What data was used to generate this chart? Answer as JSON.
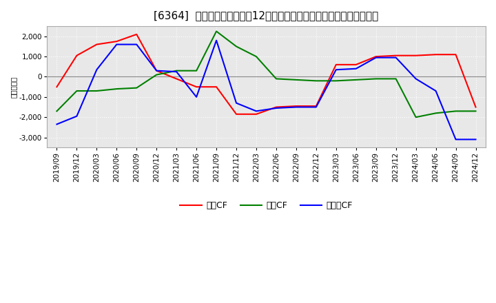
{
  "title": "[6364]  キャッシュフローの12か月移動合計の対前年同期増減額の推移",
  "ylabel": "（百万円）",
  "x_labels": [
    "2019/09",
    "2019/12",
    "2020/03",
    "2020/06",
    "2020/09",
    "2020/12",
    "2021/03",
    "2021/06",
    "2021/09",
    "2021/12",
    "2022/03",
    "2022/06",
    "2022/09",
    "2022/12",
    "2023/03",
    "2023/06",
    "2023/09",
    "2023/12",
    "2024/03",
    "2024/06",
    "2024/09",
    "2024/12"
  ],
  "series_order": [
    "営業CF",
    "投資CF",
    "フリーCF"
  ],
  "series": {
    "営業CF": {
      "color": "#ff0000",
      "values": [
        -500,
        1050,
        1600,
        1750,
        2100,
        300,
        -100,
        -500,
        -500,
        -1850,
        -1850,
        -1500,
        -1450,
        -1450,
        600,
        600,
        1000,
        1050,
        1050,
        1100,
        1100,
        -1500
      ]
    },
    "投資CF": {
      "color": "#008000",
      "values": [
        -1700,
        -700,
        -700,
        -600,
        -550,
        100,
        300,
        300,
        2250,
        1500,
        1000,
        -100,
        -150,
        -200,
        -200,
        -150,
        -100,
        -100,
        -2000,
        -1800,
        -1700,
        -1700
      ]
    },
    "フリーCF": {
      "color": "#0000ff",
      "values": [
        -2350,
        -1950,
        350,
        1600,
        1600,
        300,
        250,
        -1000,
        1800,
        -1300,
        -1700,
        -1550,
        -1500,
        -1500,
        350,
        400,
        950,
        950,
        -100,
        -700,
        -3100,
        -3100
      ]
    }
  },
  "ylim": [
    -3500,
    2500
  ],
  "yticks": [
    -3000,
    -2000,
    -1000,
    0,
    1000,
    2000
  ],
  "bg_color": "#ffffff",
  "plot_bg_color": "#e8e8e8",
  "grid_color": "#ffffff",
  "title_fontsize": 11,
  "axis_fontsize": 7.5,
  "legend_fontsize": 9
}
